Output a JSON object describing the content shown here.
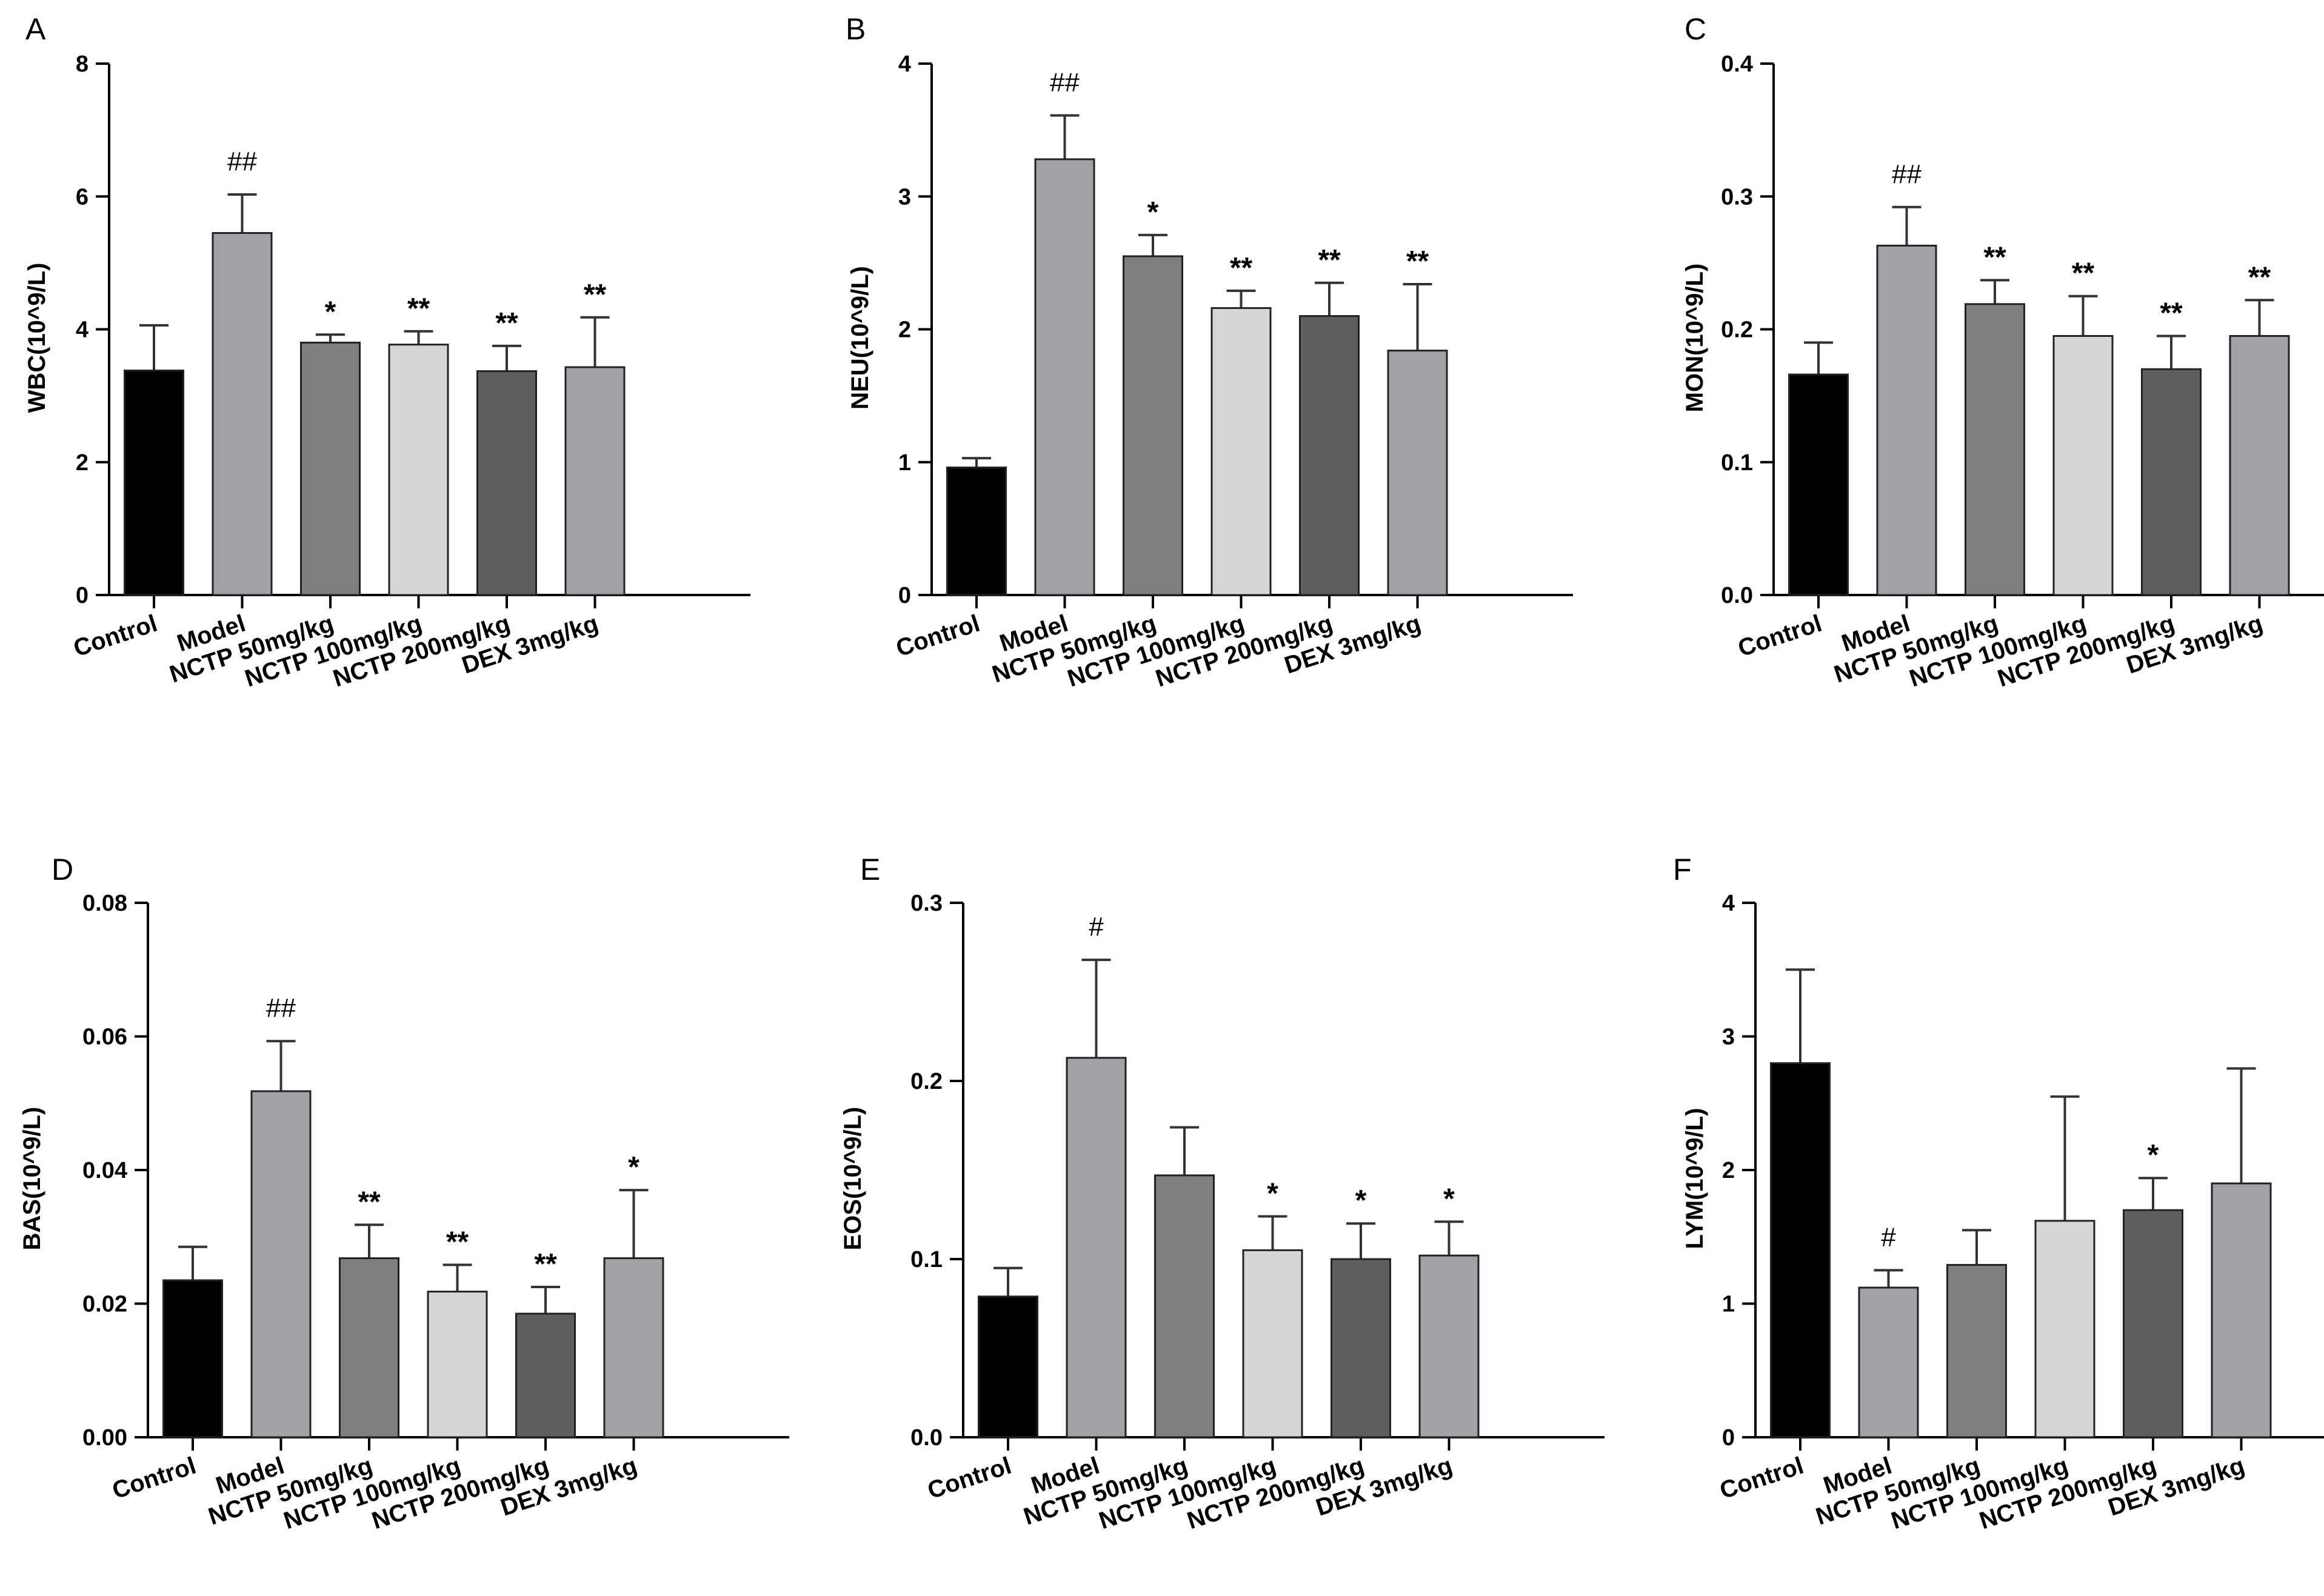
{
  "chart_data": [
    {
      "panel": "A",
      "type": "bar",
      "ylabel": "WBC(10^9/L)",
      "ylim": [
        0,
        8
      ],
      "yticks": [
        "0",
        "2",
        "4",
        "6",
        "8"
      ],
      "categories": [
        "Control",
        "Model",
        "NCTP 50mg/kg",
        "NCTP 100mg/kg",
        "NCTP 200mg/kg",
        "DEX 3mg/kg"
      ],
      "values": [
        3.38,
        5.45,
        3.8,
        3.77,
        3.37,
        3.43
      ],
      "errors": [
        0.68,
        0.58,
        0.12,
        0.2,
        0.38,
        0.75
      ],
      "significance": [
        "",
        "##",
        "*",
        "**",
        "**",
        "**"
      ]
    },
    {
      "panel": "B",
      "type": "bar",
      "ylabel": "NEU(10^9/L)",
      "ylim": [
        0,
        4
      ],
      "yticks": [
        "0",
        "1",
        "2",
        "3",
        "4"
      ],
      "categories": [
        "Control",
        "Model",
        "NCTP 50mg/kg",
        "NCTP 100mg/kg",
        "NCTP 200mg/kg",
        "DEX 3mg/kg"
      ],
      "values": [
        0.96,
        3.28,
        2.55,
        2.16,
        2.1,
        1.84
      ],
      "errors": [
        0.07,
        0.33,
        0.16,
        0.13,
        0.25,
        0.5
      ],
      "significance": [
        "",
        "##",
        "*",
        "**",
        "**",
        "**"
      ]
    },
    {
      "panel": "C",
      "type": "bar",
      "ylabel": "MON(10^9/L)",
      "ylim": [
        0,
        0.4
      ],
      "yticks": [
        "0.0",
        "0.1",
        "0.2",
        "0.3",
        "0.4"
      ],
      "categories": [
        "Control",
        "Model",
        "NCTP 50mg/kg",
        "NCTP 100mg/kg",
        "NCTP 200mg/kg",
        "DEX 3mg/kg"
      ],
      "values": [
        0.166,
        0.263,
        0.219,
        0.195,
        0.17,
        0.195
      ],
      "errors": [
        0.024,
        0.029,
        0.018,
        0.03,
        0.025,
        0.027
      ],
      "significance": [
        "",
        "##",
        "**",
        "**",
        "**",
        "**"
      ]
    },
    {
      "panel": "D",
      "type": "bar",
      "ylabel": "BAS(10^9/L)",
      "ylim": [
        0,
        0.08
      ],
      "yticks": [
        "0.00",
        "0.02",
        "0.04",
        "0.06",
        "0.08"
      ],
      "categories": [
        "Control",
        "Model",
        "NCTP 50mg/kg",
        "NCTP 100mg/kg",
        "NCTP 200mg/kg",
        "DEX 3mg/kg"
      ],
      "values": [
        0.0235,
        0.0518,
        0.0268,
        0.0218,
        0.0185,
        0.0268
      ],
      "errors": [
        0.005,
        0.0075,
        0.005,
        0.004,
        0.004,
        0.0102
      ],
      "significance": [
        "",
        "##",
        "**",
        "**",
        "**",
        "*"
      ]
    },
    {
      "panel": "E",
      "type": "bar",
      "ylabel": "EOS(10^9/L)",
      "ylim": [
        0,
        0.3
      ],
      "yticks": [
        "0.0",
        "0.1",
        "0.2",
        "0.3"
      ],
      "categories": [
        "Control",
        "Model",
        "NCTP 50mg/kg",
        "NCTP 100mg/kg",
        "NCTP 200mg/kg",
        "DEX 3mg/kg"
      ],
      "values": [
        0.079,
        0.213,
        0.147,
        0.105,
        0.1,
        0.102
      ],
      "errors": [
        0.016,
        0.055,
        0.027,
        0.019,
        0.02,
        0.019
      ],
      "significance": [
        "",
        "#",
        "",
        "*",
        "*",
        "*"
      ]
    },
    {
      "panel": "F",
      "type": "bar",
      "ylabel": "LYM(10^9/L)",
      "ylim": [
        0,
        4
      ],
      "yticks": [
        "0",
        "1",
        "2",
        "3",
        "4"
      ],
      "categories": [
        "Control",
        "Model",
        "NCTP 50mg/kg",
        "NCTP 100mg/kg",
        "NCTP 200mg/kg",
        "DEX 3mg/kg"
      ],
      "values": [
        2.8,
        1.12,
        1.29,
        1.62,
        1.7,
        1.9
      ],
      "errors": [
        0.7,
        0.13,
        0.26,
        0.93,
        0.24,
        0.86
      ],
      "significance": [
        "",
        "#",
        "",
        "",
        "*",
        ""
      ]
    }
  ],
  "colors": [
    "#000000",
    "#a1a1a6",
    "#7e7e7e",
    "#d6d6d6",
    "#5e5e5e",
    "#a1a1a6"
  ],
  "edge_color": "#222222",
  "error_color": "#333333"
}
